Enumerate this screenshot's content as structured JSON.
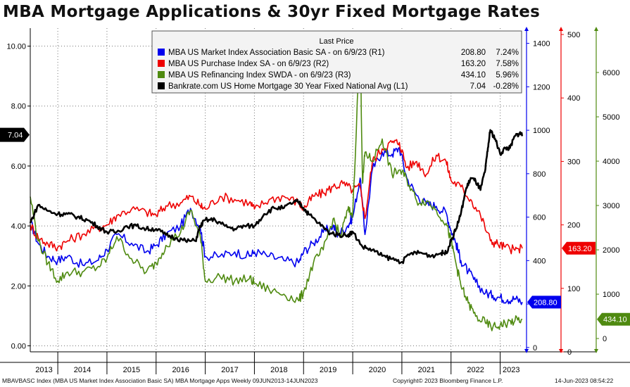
{
  "title": "MBA Mortgage Applications & 30yr Fixed Mortgage Rates",
  "footer": {
    "left": "MBAVBASC Index (MBA US Market Index Association Basic SA) MBA Mortgage Apps Weekly 09JUN2013-14JUN2023",
    "center": "Copyright© 2023 Bloomberg Finance L.P.",
    "right": "14-Jun-2023 08:54:22"
  },
  "colors": {
    "r1": "#0000ee",
    "r2": "#ee0000",
    "r3": "#4f8a10",
    "l1": "#000000",
    "grid": "#777777"
  },
  "legend": {
    "header": "Last Price",
    "entries": [
      {
        "label": "MBA US Market Index Association Basic SA -  on 6/9/23  (R1)",
        "value": "208.80",
        "change": "7.24%",
        "color": "#0000ee"
      },
      {
        "label": "MBA US Purchase Index SA -  on 6/9/23  (R2)",
        "value": "163.20",
        "change": "7.58%",
        "color": "#ee0000"
      },
      {
        "label": "MBA US Refinancing Index SWDA -  on 6/9/23  (R3)",
        "value": "434.10",
        "change": "5.96%",
        "color": "#4f8a10"
      },
      {
        "label": "Bankrate.com US Home Mortgage 30 Year Fixed National Avg  (L1)",
        "value": "7.04",
        "change": "-0.28%",
        "color": "#000000"
      }
    ]
  },
  "chart_data": {
    "type": "line",
    "title": "MBA Mortgage Applications & 30yr Fixed Mortgage Rates",
    "x_labels": [
      "2013",
      "2014",
      "2015",
      "2016",
      "2017",
      "2018",
      "2019",
      "2020",
      "2021",
      "2022",
      "2023"
    ],
    "x_range": [
      2013.44,
      2023.45
    ],
    "grid": true,
    "legend_position": "top-right",
    "axes": {
      "L1": {
        "ticks": [
          "0.00",
          "2.00",
          "4.00",
          "6.00",
          "8.00",
          "10.00"
        ],
        "ylim": [
          -0.2,
          10.6
        ]
      },
      "R1": {
        "ticks": [
          "0",
          "200",
          "400",
          "600",
          "800",
          "1000",
          "1200",
          "1400"
        ],
        "ylim": [
          -20,
          1470
        ]
      },
      "R2": {
        "ticks": [
          "0",
          "100",
          "200",
          "300",
          "400",
          "500"
        ],
        "ylim": [
          0,
          510
        ]
      },
      "R3": {
        "ticks": [
          "0",
          "1000",
          "2000",
          "3000",
          "4000",
          "5000",
          "6000"
        ],
        "ylim": [
          -300,
          7000
        ]
      }
    },
    "last_value_labels": {
      "L1": "7.04",
      "R1": "208.80",
      "R2": "163.20",
      "R3": "434.10"
    },
    "series": [
      {
        "name": "MBA US Market Index Association Basic SA",
        "axis": "R1",
        "color": "#0000ee",
        "x": [
          2013.44,
          2013.6,
          2013.8,
          2014.0,
          2014.2,
          2014.5,
          2014.8,
          2015.0,
          2015.2,
          2015.5,
          2015.8,
          2016.0,
          2016.2,
          2016.5,
          2016.7,
          2016.9,
          2017.0,
          2017.3,
          2017.6,
          2017.9,
          2018.0,
          2018.3,
          2018.6,
          2018.9,
          2019.0,
          2019.2,
          2019.4,
          2019.6,
          2019.7,
          2019.9,
          2020.0,
          2020.15,
          2020.25,
          2020.4,
          2020.6,
          2020.8,
          2020.95,
          2021.1,
          2021.3,
          2021.5,
          2021.7,
          2021.9,
          2022.0,
          2022.1,
          2022.2,
          2022.35,
          2022.5,
          2022.7,
          2022.85,
          2023.0,
          2023.15,
          2023.3,
          2023.45
        ],
        "values": [
          580,
          480,
          420,
          400,
          420,
          380,
          400,
          450,
          520,
          480,
          440,
          470,
          520,
          560,
          640,
          550,
          420,
          420,
          440,
          420,
          440,
          420,
          400,
          390,
          440,
          480,
          530,
          560,
          520,
          560,
          600,
          780,
          520,
          820,
          900,
          890,
          920,
          780,
          700,
          660,
          650,
          620,
          540,
          480,
          400,
          350,
          300,
          250,
          240,
          230,
          220,
          225,
          209
        ]
      },
      {
        "name": "MBA US Purchase Index SA",
        "axis": "R2",
        "color": "#ee0000",
        "x": [
          2013.44,
          2013.6,
          2013.8,
          2014.0,
          2014.2,
          2014.5,
          2014.8,
          2015.0,
          2015.2,
          2015.5,
          2015.8,
          2016.0,
          2016.2,
          2016.5,
          2016.7,
          2016.9,
          2017.0,
          2017.3,
          2017.6,
          2017.9,
          2018.0,
          2018.3,
          2018.6,
          2018.9,
          2019.0,
          2019.2,
          2019.4,
          2019.6,
          2019.8,
          2020.0,
          2020.15,
          2020.25,
          2020.4,
          2020.6,
          2020.8,
          2020.95,
          2021.1,
          2021.3,
          2021.5,
          2021.7,
          2021.9,
          2022.0,
          2022.2,
          2022.4,
          2022.6,
          2022.8,
          2022.95,
          2023.1,
          2023.3,
          2023.45
        ],
        "values": [
          200,
          180,
          170,
          165,
          175,
          185,
          195,
          200,
          215,
          225,
          220,
          215,
          230,
          235,
          245,
          230,
          225,
          245,
          240,
          235,
          225,
          240,
          245,
          235,
          225,
          245,
          250,
          260,
          265,
          255,
          260,
          210,
          300,
          320,
          330,
          330,
          290,
          300,
          280,
          310,
          300,
          270,
          260,
          240,
          215,
          175,
          170,
          165,
          160,
          163
        ]
      },
      {
        "name": "MBA US Refinancing Index SWDA",
        "axis": "R3",
        "color": "#4f8a10",
        "x": [
          2013.44,
          2013.6,
          2013.8,
          2014.0,
          2014.2,
          2014.5,
          2014.8,
          2015.0,
          2015.2,
          2015.5,
          2015.8,
          2016.0,
          2016.2,
          2016.5,
          2016.7,
          2016.9,
          2017.0,
          2017.3,
          2017.6,
          2017.9,
          2018.0,
          2018.3,
          2018.6,
          2018.9,
          2019.0,
          2019.2,
          2019.4,
          2019.6,
          2019.75,
          2019.9,
          2020.0,
          2020.15,
          2020.2,
          2020.25,
          2020.4,
          2020.6,
          2020.8,
          2020.95,
          2021.1,
          2021.3,
          2021.5,
          2021.7,
          2021.9,
          2022.0,
          2022.1,
          2022.2,
          2022.35,
          2022.5,
          2022.7,
          2022.85,
          2023.0,
          2023.15,
          2023.3,
          2023.45
        ],
        "values": [
          3200,
          2200,
          1700,
          1300,
          1500,
          1500,
          1600,
          1800,
          2300,
          1800,
          1500,
          1700,
          2100,
          2400,
          2900,
          2300,
          1300,
          1400,
          1300,
          1350,
          1250,
          1100,
          1000,
          850,
          1050,
          1700,
          2000,
          2700,
          2300,
          2900,
          2800,
          6800,
          3500,
          4200,
          4000,
          4500,
          3700,
          3800,
          3600,
          3100,
          3100,
          2900,
          2600,
          2200,
          1700,
          1200,
          800,
          500,
          350,
          250,
          300,
          350,
          400,
          434
        ]
      },
      {
        "name": "Bankrate.com US Home Mortgage 30 Year Fixed National Avg",
        "axis": "L1",
        "color": "#000000",
        "x": [
          2013.44,
          2013.6,
          2013.8,
          2014.0,
          2014.2,
          2014.4,
          2014.6,
          2014.8,
          2015.0,
          2015.2,
          2015.4,
          2015.6,
          2015.8,
          2016.0,
          2016.2,
          2016.4,
          2016.6,
          2016.8,
          2016.9,
          2017.0,
          2017.2,
          2017.4,
          2017.6,
          2017.8,
          2018.0,
          2018.2,
          2018.4,
          2018.6,
          2018.8,
          2018.9,
          2019.0,
          2019.1,
          2019.3,
          2019.5,
          2019.7,
          2019.9,
          2020.0,
          2020.2,
          2020.4,
          2020.6,
          2020.8,
          2021.0,
          2021.2,
          2021.4,
          2021.6,
          2021.8,
          2021.9,
          2022.0,
          2022.1,
          2022.2,
          2022.3,
          2022.4,
          2022.5,
          2022.6,
          2022.7,
          2022.75,
          2022.8,
          2022.9,
          2023.0,
          2023.1,
          2023.2,
          2023.3,
          2023.4,
          2023.45
        ],
        "values": [
          4.1,
          4.7,
          4.5,
          4.4,
          4.4,
          4.3,
          4.2,
          4.0,
          3.8,
          3.8,
          4.0,
          4.0,
          3.9,
          3.9,
          3.7,
          3.6,
          3.5,
          3.5,
          4.0,
          4.2,
          4.2,
          4.0,
          3.9,
          4.0,
          4.0,
          4.4,
          4.6,
          4.6,
          4.8,
          4.8,
          4.6,
          4.4,
          4.1,
          3.8,
          3.7,
          3.7,
          3.8,
          3.3,
          3.2,
          3.0,
          2.9,
          2.8,
          3.1,
          3.1,
          3.0,
          3.1,
          3.1,
          3.5,
          3.9,
          4.4,
          5.2,
          5.6,
          5.5,
          5.2,
          5.9,
          6.6,
          7.2,
          6.9,
          6.4,
          6.6,
          6.6,
          7.0,
          7.1,
          7.04
        ]
      }
    ]
  }
}
